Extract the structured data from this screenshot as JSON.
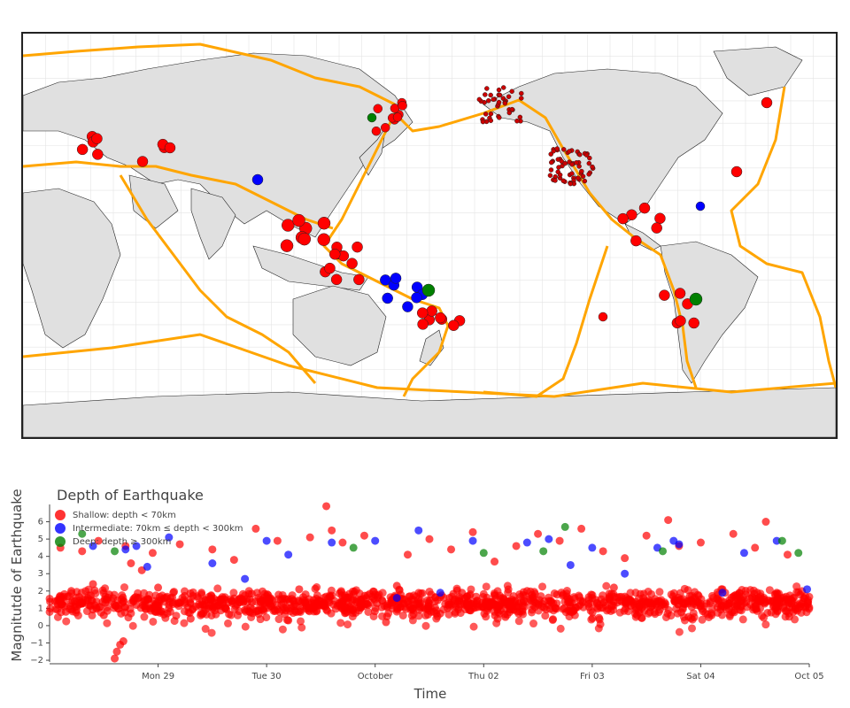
{
  "colors": {
    "shallow": "#ff0000",
    "intermediate": "#0000ff",
    "deep": "#008000",
    "plate_boundary": "#ffa500",
    "land": "#e0e0e0",
    "grid": "#dddddd"
  },
  "map": {
    "projection": "equirectangular, centered on the Pacific (150°E)",
    "plate_boundaries_shown": true,
    "graticule": true
  },
  "legend": {
    "title": "Depth of Earthquake",
    "items": [
      {
        "key": "shallow",
        "label": "Shallow: depth < 70km",
        "icon": "red-circle"
      },
      {
        "key": "intermediate",
        "label": "Intermediate: 70km ≤ depth < 300km",
        "icon": "blue-circle"
      },
      {
        "key": "deep",
        "label": "Deep: depth ≥ 300km",
        "icon": "green-circle"
      }
    ]
  },
  "chart_data": {
    "type": "scatter",
    "xlabel": "Time",
    "ylabel": "Magnitutde of Earthquake",
    "x_ticks": [
      "Mon 29",
      "Tue 30",
      "October",
      "Thu 02",
      "Fri 03",
      "Sat 04",
      "Oct 05"
    ],
    "x_tick_days": [
      1,
      2,
      3,
      4,
      5,
      6,
      7
    ],
    "xlim_days": [
      0,
      7
    ],
    "y_ticks": [
      "−2",
      "−1",
      "0",
      "1",
      "2",
      "3",
      "4",
      "5",
      "6"
    ],
    "y_tick_values": [
      -2,
      -1,
      0,
      1,
      2,
      3,
      4,
      5,
      6
    ],
    "ylim": [
      -2.1,
      7
    ],
    "grid": false,
    "legend_position": "top-left",
    "note": "x = days since Sun 28, 00:00; ~1400 points, mostly shallow with magnitude 0–2.5",
    "series": [
      {
        "name": "Shallow: depth < 70km",
        "color": "#ff0000",
        "points": [
          [
            0.05,
            1.4
          ],
          [
            0.1,
            4.5
          ],
          [
            0.15,
            0.8
          ],
          [
            0.2,
            2.0
          ],
          [
            0.25,
            1.1
          ],
          [
            0.3,
            4.3
          ],
          [
            0.35,
            1.6
          ],
          [
            0.4,
            2.4
          ],
          [
            0.45,
            4.9
          ],
          [
            0.5,
            0.6
          ],
          [
            0.55,
            1.8
          ],
          [
            0.6,
            -1.9
          ],
          [
            0.62,
            -1.5
          ],
          [
            0.65,
            -1.1
          ],
          [
            0.68,
            -0.9
          ],
          [
            0.7,
            4.6
          ],
          [
            0.75,
            3.6
          ],
          [
            0.8,
            1.2
          ],
          [
            0.85,
            3.2
          ],
          [
            0.9,
            1.5
          ],
          [
            0.95,
            4.2
          ],
          [
            1.0,
            2.2
          ],
          [
            1.1,
            1.0
          ],
          [
            1.2,
            4.7
          ],
          [
            1.3,
            0.4
          ],
          [
            1.4,
            1.9
          ],
          [
            1.5,
            4.4
          ],
          [
            1.6,
            1.3
          ],
          [
            1.7,
            3.8
          ],
          [
            1.8,
            0.9
          ],
          [
            1.9,
            5.6
          ],
          [
            2.0,
            1.7
          ],
          [
            2.1,
            4.9
          ],
          [
            2.2,
            0.3
          ],
          [
            2.3,
            2.1
          ],
          [
            2.4,
            5.1
          ],
          [
            2.5,
            1.4
          ],
          [
            2.55,
            6.9
          ],
          [
            2.6,
            5.5
          ],
          [
            2.7,
            4.8
          ],
          [
            2.8,
            1.0
          ],
          [
            2.9,
            5.2
          ],
          [
            3.0,
            1.8
          ],
          [
            3.1,
            0.2
          ],
          [
            3.2,
            2.3
          ],
          [
            3.3,
            4.1
          ],
          [
            3.4,
            1.5
          ],
          [
            3.5,
            5.0
          ],
          [
            3.6,
            0.7
          ],
          [
            3.7,
            4.4
          ],
          [
            3.8,
            1.9
          ],
          [
            3.9,
            5.4
          ],
          [
            4.0,
            1.1
          ],
          [
            4.1,
            3.7
          ],
          [
            4.2,
            0.5
          ],
          [
            4.3,
            4.6
          ],
          [
            4.4,
            2.0
          ],
          [
            4.5,
            5.3
          ],
          [
            4.6,
            1.2
          ],
          [
            4.7,
            4.9
          ],
          [
            4.8,
            0.8
          ],
          [
            4.9,
            5.6
          ],
          [
            5.0,
            1.6
          ],
          [
            5.1,
            4.3
          ],
          [
            5.2,
            2.2
          ],
          [
            5.3,
            3.9
          ],
          [
            5.4,
            0.9
          ],
          [
            5.5,
            5.2
          ],
          [
            5.6,
            1.4
          ],
          [
            5.7,
            6.1
          ],
          [
            5.8,
            4.6
          ],
          [
            5.9,
            1.7
          ],
          [
            6.0,
            4.8
          ],
          [
            6.1,
            0.6
          ],
          [
            6.2,
            2.1
          ],
          [
            6.3,
            5.3
          ],
          [
            6.4,
            1.3
          ],
          [
            6.5,
            4.5
          ],
          [
            6.6,
            6.0
          ],
          [
            6.7,
            1.9
          ],
          [
            6.8,
            4.1
          ],
          [
            6.9,
            1.0
          ],
          [
            6.95,
            1.6
          ]
        ]
      },
      {
        "name": "Intermediate: 70km ≤ depth < 300km",
        "color": "#0000ff",
        "points": [
          [
            0.4,
            4.6
          ],
          [
            0.7,
            4.4
          ],
          [
            0.8,
            4.6
          ],
          [
            0.9,
            3.4
          ],
          [
            1.1,
            5.1
          ],
          [
            1.5,
            3.6
          ],
          [
            1.8,
            2.7
          ],
          [
            2.0,
            4.9
          ],
          [
            2.2,
            4.1
          ],
          [
            2.6,
            4.8
          ],
          [
            3.0,
            4.9
          ],
          [
            3.2,
            1.6
          ],
          [
            3.4,
            5.5
          ],
          [
            3.6,
            1.9
          ],
          [
            3.9,
            4.9
          ],
          [
            4.4,
            4.8
          ],
          [
            4.6,
            5.0
          ],
          [
            4.8,
            3.5
          ],
          [
            5.0,
            4.5
          ],
          [
            5.3,
            3.0
          ],
          [
            5.6,
            4.5
          ],
          [
            5.75,
            4.9
          ],
          [
            5.8,
            4.7
          ],
          [
            6.2,
            1.9
          ],
          [
            6.4,
            4.2
          ],
          [
            6.7,
            4.9
          ],
          [
            6.98,
            2.1
          ]
        ]
      },
      {
        "name": "Deep: depth ≥ 300km",
        "color": "#008000",
        "points": [
          [
            0.3,
            5.3
          ],
          [
            0.6,
            4.3
          ],
          [
            2.8,
            4.5
          ],
          [
            4.0,
            4.2
          ],
          [
            4.55,
            4.3
          ],
          [
            4.75,
            5.7
          ],
          [
            5.65,
            4.3
          ],
          [
            6.75,
            4.9
          ],
          [
            6.9,
            4.2
          ]
        ]
      }
    ]
  }
}
